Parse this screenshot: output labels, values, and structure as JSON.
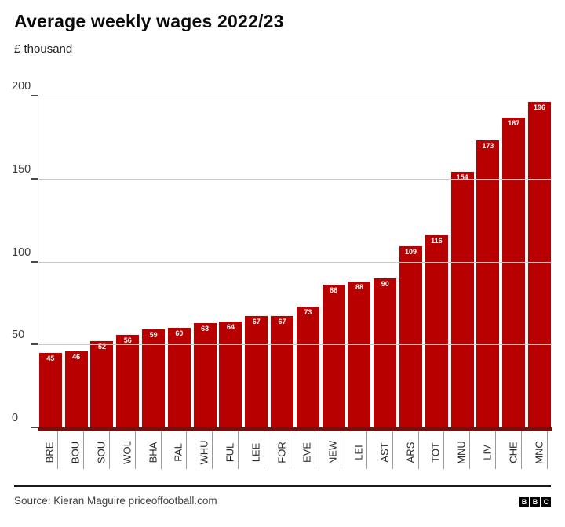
{
  "header": {
    "title": "Average weekly wages 2022/23",
    "subtitle": "£ thousand"
  },
  "chart_data": {
    "type": "bar",
    "title": "Average weekly wages 2022/23",
    "unit_label": "£ thousand",
    "categories": [
      "BRE",
      "BOU",
      "SOU",
      "WOL",
      "BHA",
      "PAL",
      "WHU",
      "FUL",
      "LEE",
      "FOR",
      "EVE",
      "NEW",
      "LEI",
      "AST",
      "ARS",
      "TOT",
      "MNU",
      "LIV",
      "CHE",
      "MNC"
    ],
    "values": [
      45,
      46,
      52,
      56,
      59,
      60,
      63,
      64,
      67,
      67,
      73,
      86,
      88,
      90,
      109,
      116,
      154,
      173,
      187,
      196
    ],
    "xlabel": "",
    "ylabel": "£ thousand",
    "ylim": [
      0,
      200
    ],
    "yticks": [
      0,
      50,
      100,
      150,
      200
    ],
    "grid": true,
    "legend": "none",
    "bar_color": "#b80000",
    "baseline_color": "#6e1313",
    "value_label_color": "#ffffff"
  },
  "footer": {
    "source": "Source: Kieran Maguire priceoffootball.com",
    "logo_letters": [
      "B",
      "B",
      "C"
    ]
  }
}
